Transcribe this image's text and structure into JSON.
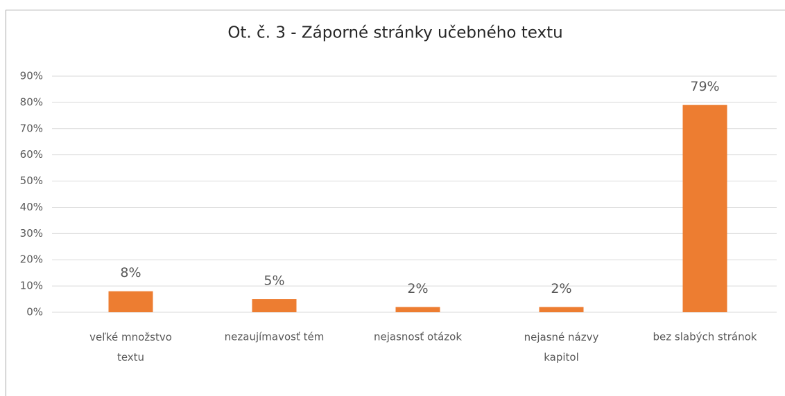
{
  "chart_data": {
    "type": "bar",
    "title": "Ot. č. 3 - Záporné stránky učebného textu",
    "categories": [
      "veľké množstvo\ntextu",
      "nezaujímavosť tém",
      "nejasnosť otázok",
      "nejasné názvy\nkapitol",
      "bez slabých stránok"
    ],
    "values": [
      8,
      5,
      2,
      2,
      79
    ],
    "value_labels": [
      "8%",
      "5%",
      "2%",
      "2%",
      "79%"
    ],
    "color": "#ed7d31",
    "ylim": [
      0,
      90
    ],
    "yticks": [
      {
        "value": 0,
        "label": "0%"
      },
      {
        "value": 10,
        "label": "10%"
      },
      {
        "value": 20,
        "label": "20%"
      },
      {
        "value": 30,
        "label": "30%"
      },
      {
        "value": 40,
        "label": "40%"
      },
      {
        "value": 50,
        "label": "50%"
      },
      {
        "value": 60,
        "label": "60%"
      },
      {
        "value": 70,
        "label": "70%"
      },
      {
        "value": 80,
        "label": "80%"
      },
      {
        "value": 90,
        "label": "90%"
      }
    ],
    "grid": true
  }
}
